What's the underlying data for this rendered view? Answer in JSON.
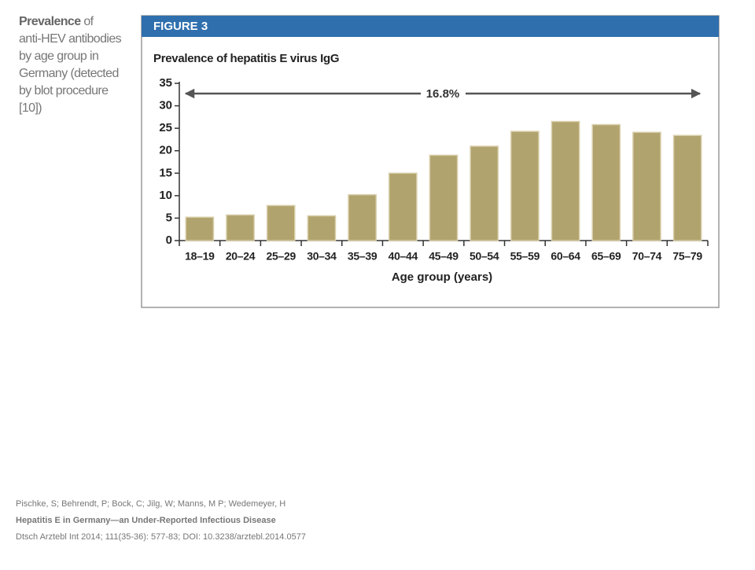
{
  "caption": {
    "bold": "Prevalence",
    "lines": [
      "of",
      "anti-HEV antibodies",
      "by age group in",
      "Germany (detected",
      "by blot procedure",
      "[10])"
    ]
  },
  "figure_label": "FIGURE 3",
  "chart_data": {
    "type": "bar",
    "title": "Prevalence of hepatitis E virus IgG",
    "xlabel": "Age group (years)",
    "categories": [
      "18–19",
      "20–24",
      "25–29",
      "30–34",
      "35–39",
      "40–44",
      "45–49",
      "50–54",
      "55–59",
      "60–64",
      "65–69",
      "70–74",
      "75–79"
    ],
    "values": [
      5.2,
      5.7,
      7.8,
      5.5,
      10.2,
      15,
      19,
      21,
      24.3,
      26.5,
      25.8,
      24.1,
      23.4
    ],
    "color": "#b1a36d",
    "ylim": [
      0,
      35
    ],
    "yticks": [
      0,
      5,
      10,
      15,
      20,
      25,
      30,
      35
    ],
    "annotation": "16.8%"
  },
  "footer": {
    "authors": "Pischke, S; Behrendt, P; Bock, C; Jilg, W; Manns, M P; Wedemeyer, H",
    "title": "Hepatitis E in Germany—an Under-Reported Infectious Disease",
    "citation": "Dtsch Arztebl Int 2014; 111(35-36): 577-83; DOI: 10.3238/arztebl.2014.0577"
  }
}
